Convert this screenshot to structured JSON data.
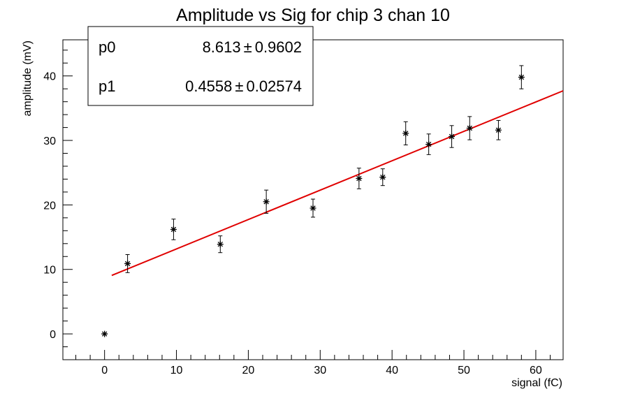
{
  "chart_data": {
    "type": "scatter",
    "title": "Amplitude vs Sig for chip 3 chan 10",
    "xlabel": "signal (fC)",
    "ylabel": "amplitude (mV)",
    "xlim": [
      -5.8,
      63.8
    ],
    "ylim": [
      -4.0,
      45.6
    ],
    "x_ticks": [
      0,
      10,
      20,
      30,
      40,
      50,
      60
    ],
    "y_ticks": [
      0,
      10,
      20,
      30,
      40
    ],
    "grid": false,
    "series": [
      {
        "marker": "star",
        "color": "#000000",
        "points": [
          {
            "x": 0.0,
            "y": 0.0,
            "err": 0.0
          },
          {
            "x": 3.2,
            "y": 10.9,
            "err": 1.4
          },
          {
            "x": 9.6,
            "y": 16.2,
            "err": 1.6
          },
          {
            "x": 16.1,
            "y": 13.9,
            "err": 1.3
          },
          {
            "x": 22.5,
            "y": 20.5,
            "err": 1.8
          },
          {
            "x": 29.0,
            "y": 19.5,
            "err": 1.4
          },
          {
            "x": 35.4,
            "y": 24.1,
            "err": 1.6
          },
          {
            "x": 38.7,
            "y": 24.3,
            "err": 1.3
          },
          {
            "x": 41.9,
            "y": 31.1,
            "err": 1.8
          },
          {
            "x": 45.1,
            "y": 29.4,
            "err": 1.6
          },
          {
            "x": 48.3,
            "y": 30.6,
            "err": 1.7
          },
          {
            "x": 50.8,
            "y": 31.9,
            "err": 1.8
          },
          {
            "x": 54.8,
            "y": 31.6,
            "err": 1.5
          },
          {
            "x": 58.0,
            "y": 39.8,
            "err": 1.8
          }
        ]
      }
    ],
    "fit": {
      "color": "#e00000",
      "p0": 8.613,
      "p1": 0.4558,
      "x_range": [
        1.0,
        63.8
      ]
    },
    "stats_box": {
      "rows": [
        {
          "name": "p0",
          "value": "8.613",
          "pm": "±",
          "error": "0.9602"
        },
        {
          "name": "p1",
          "value": "0.4558",
          "pm": "±",
          "error": "0.02574"
        }
      ]
    }
  }
}
